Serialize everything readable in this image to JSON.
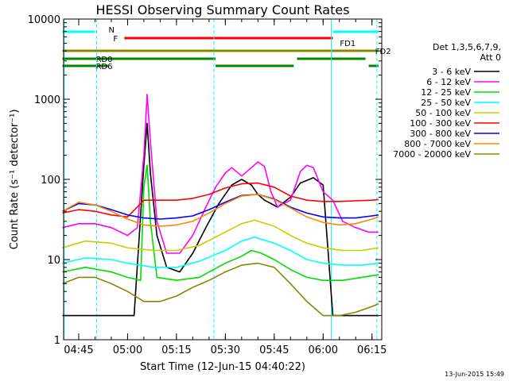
{
  "chart_data": {
    "type": "line",
    "title": "HESSI Observing Summary Count Rates",
    "xlabel": "Start Time (12-Jun-15 04:40:22)",
    "ylabel": "Count Rate (s⁻¹ detector⁻¹)",
    "yscale": "log",
    "xlim": [
      "04:40:22",
      "06:18:00"
    ],
    "ylim": [
      1,
      10000
    ],
    "x_ticks": [
      "04:45",
      "05:00",
      "05:15",
      "05:30",
      "05:45",
      "06:00",
      "06:15"
    ],
    "y_ticks": [
      "1",
      "10",
      "100",
      "1000",
      "10000"
    ],
    "legend": {
      "placement": "right",
      "header": [
        "Det 1,3,5,6,7,9,",
        "Att 0"
      ]
    },
    "series": [
      {
        "name": "3 - 6 keV",
        "color": "#000000",
        "x": [
          "04:40",
          "04:50",
          "04:58",
          "05:02",
          "05:05",
          "05:06",
          "05:07",
          "05:09",
          "05:12",
          "05:16",
          "05:20",
          "05:24",
          "05:28",
          "05:32",
          "05:35",
          "05:38",
          "05:40",
          "05:42",
          "05:44",
          "05:46",
          "05:50",
          "05:53",
          "05:57",
          "06:00",
          "06:03",
          "06:06",
          "06:10",
          "06:14",
          "06:17"
        ],
        "values": [
          2,
          2,
          2,
          2,
          150,
          500,
          120,
          20,
          8,
          7,
          12,
          25,
          50,
          85,
          100,
          85,
          65,
          55,
          50,
          45,
          60,
          90,
          105,
          85,
          2,
          2,
          2,
          2,
          2
        ]
      },
      {
        "name": "6 - 12 keV",
        "color": "#ff00ff",
        "x": [
          "04:40",
          "04:45",
          "04:50",
          "04:55",
          "05:00",
          "05:03",
          "05:05",
          "05:06",
          "05:07",
          "05:09",
          "05:12",
          "05:16",
          "05:20",
          "05:24",
          "05:27",
          "05:30",
          "05:32",
          "05:35",
          "05:38",
          "05:40",
          "05:42",
          "05:44",
          "05:46",
          "05:48",
          "05:50",
          "05:53",
          "05:55",
          "05:57",
          "06:00",
          "06:03",
          "06:06",
          "06:10",
          "06:14",
          "06:17"
        ],
        "values": [
          25,
          28,
          28,
          25,
          20,
          25,
          200,
          1150,
          300,
          30,
          12,
          12,
          20,
          45,
          80,
          120,
          140,
          110,
          140,
          165,
          145,
          70,
          45,
          50,
          55,
          125,
          150,
          140,
          70,
          55,
          30,
          25,
          22,
          22
        ]
      },
      {
        "name": "12 - 25 keV",
        "color": "#00dd00",
        "x": [
          "04:40",
          "04:47",
          "04:55",
          "05:00",
          "05:04",
          "05:05",
          "05:06",
          "05:07",
          "05:09",
          "05:15",
          "05:22",
          "05:30",
          "05:35",
          "05:38",
          "05:41",
          "05:45",
          "05:50",
          "05:55",
          "06:00",
          "06:06",
          "06:12",
          "06:17"
        ],
        "values": [
          7,
          8,
          7,
          6,
          5.5,
          80,
          150,
          30,
          6,
          5.5,
          6,
          9,
          11,
          13,
          12,
          10,
          7.5,
          6,
          5.5,
          5.5,
          6,
          6.5
        ]
      },
      {
        "name": "25 - 50 keV",
        "color": "#00ffff",
        "x": [
          "04:40",
          "04:47",
          "04:55",
          "05:00",
          "05:08",
          "05:15",
          "05:22",
          "05:30",
          "05:35",
          "05:39",
          "05:45",
          "05:50",
          "05:55",
          "06:00",
          "06:06",
          "06:12",
          "06:17"
        ],
        "values": [
          9,
          10.5,
          10,
          9,
          8,
          8,
          9.5,
          13,
          17,
          19,
          16,
          13,
          10,
          9,
          8.5,
          8.5,
          9
        ]
      },
      {
        "name": "50 - 100 keV",
        "color": "#cccc00",
        "x": [
          "04:40",
          "04:47",
          "04:55",
          "05:00",
          "05:08",
          "05:15",
          "05:22",
          "05:30",
          "05:35",
          "05:39",
          "05:45",
          "05:50",
          "05:55",
          "06:00",
          "06:06",
          "06:12",
          "06:17"
        ],
        "values": [
          14,
          17,
          16,
          14,
          13,
          13,
          15,
          22,
          28,
          31,
          26,
          20,
          16,
          14,
          13,
          13,
          14
        ]
      },
      {
        "name": "100 - 300 keV",
        "color": "#ff0000",
        "x": [
          "04:40",
          "04:45",
          "04:50",
          "04:55",
          "05:00",
          "05:05",
          "05:10",
          "05:15",
          "05:20",
          "05:25",
          "05:30",
          "05:35",
          "05:40",
          "05:45",
          "05:50",
          "05:55",
          "06:00",
          "06:05",
          "06:10",
          "06:15",
          "06:17"
        ],
        "values": [
          38,
          42,
          40,
          36,
          34,
          55,
          55,
          55,
          58,
          65,
          78,
          88,
          90,
          80,
          62,
          55,
          53,
          53,
          54,
          55,
          56
        ]
      },
      {
        "name": "300 - 800 keV",
        "color": "#0000ff",
        "x": [
          "04:40",
          "04:45",
          "04:50",
          "04:55",
          "05:00",
          "05:05",
          "05:10",
          "05:15",
          "05:20",
          "05:25",
          "05:30",
          "05:35",
          "05:40",
          "05:45",
          "05:50",
          "05:55",
          "06:00",
          "06:05",
          "06:10",
          "06:15",
          "06:17"
        ],
        "values": [
          40,
          50,
          48,
          42,
          36,
          33,
          32,
          33,
          35,
          42,
          52,
          63,
          65,
          57,
          45,
          38,
          34,
          33,
          33,
          35,
          36
        ]
      },
      {
        "name": "800 - 7000 keV",
        "color": "#ff8800",
        "x": [
          "04:40",
          "04:45",
          "04:50",
          "04:55",
          "05:00",
          "05:05",
          "05:10",
          "05:15",
          "05:20",
          "05:25",
          "05:30",
          "05:35",
          "05:40",
          "05:45",
          "05:50",
          "05:55",
          "06:00",
          "06:05",
          "06:10",
          "06:15",
          "06:17"
        ],
        "values": [
          40,
          52,
          48,
          40,
          32,
          27,
          26,
          27,
          30,
          38,
          50,
          62,
          65,
          56,
          44,
          34,
          29,
          27,
          28,
          32,
          34
        ]
      },
      {
        "name": "7000 - 20000 keV",
        "color": "#888800",
        "x": [
          "04:40",
          "04:45",
          "04:50",
          "04:55",
          "05:00",
          "05:05",
          "05:10",
          "05:15",
          "05:20",
          "05:25",
          "05:30",
          "05:35",
          "05:40",
          "05:45",
          "05:50",
          "05:55",
          "06:00",
          "06:05",
          "06:10",
          "06:15",
          "06:17"
        ],
        "values": [
          5,
          6,
          6,
          5,
          4,
          3,
          3,
          3.5,
          4.5,
          5.5,
          7,
          8.5,
          9,
          8,
          5,
          3,
          2,
          2,
          2.2,
          2.6,
          2.8
        ]
      }
    ],
    "flag_bars": [
      {
        "label": "N",
        "color": "#00ffff",
        "start": "04:40",
        "end": "04:50"
      },
      {
        "label": "",
        "color": "#00ffff",
        "start": "06:03",
        "end": "06:17"
      },
      {
        "label": "F",
        "color": "#ff0000",
        "start": "04:59",
        "end": "06:03"
      },
      {
        "label": "FD1",
        "color": "#888800",
        "start": "04:40",
        "end": "06:17"
      },
      {
        "label": "FD2",
        "color": "#888800",
        "start": "06:13",
        "end": "06:17"
      },
      {
        "label": "RD0",
        "color": "#008800",
        "start": "04:40",
        "end": "05:27"
      },
      {
        "label": "",
        "color": "#008800",
        "start": "05:52",
        "end": "06:13"
      },
      {
        "label": "RD6",
        "color": "#008800",
        "start": "04:40",
        "end": "04:54"
      },
      {
        "label": "",
        "color": "#008800",
        "start": "05:27",
        "end": "05:51"
      },
      {
        "label": "",
        "color": "#008800",
        "start": "06:14",
        "end": "06:17"
      }
    ],
    "vertical_markers": [
      {
        "time": "04:40:30",
        "color": "#00ffff",
        "style": "solid"
      },
      {
        "time": "04:50:30",
        "color": "#00ffff",
        "style": "dashed"
      },
      {
        "time": "05:26:30",
        "color": "#00ffff",
        "style": "dashed"
      },
      {
        "time": "06:02:30",
        "color": "#00ffff",
        "style": "solid"
      },
      {
        "time": "06:16:30",
        "color": "#00ffff",
        "style": "dashed"
      }
    ]
  },
  "footer": {
    "timestamp": "13-Jun-2015 15:49"
  }
}
